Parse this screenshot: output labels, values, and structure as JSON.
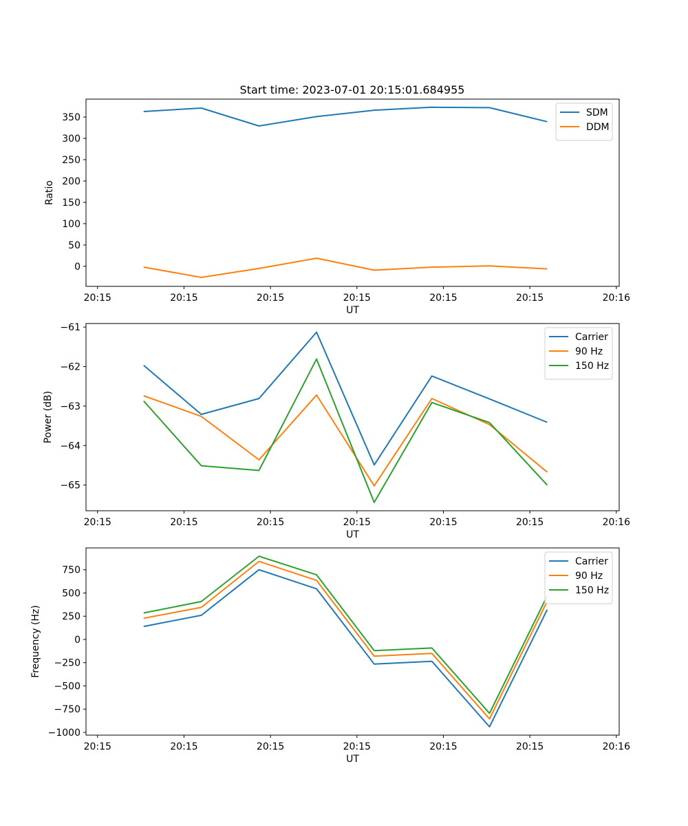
{
  "figure_title": "Start time: 2023-07-01 20:15:01.684955",
  "colors": {
    "blue": "#1f77b4",
    "orange": "#ff7f0e",
    "green": "#2ca02c"
  },
  "chart_data": [
    {
      "type": "line",
      "title": "Start time: 2023-07-01 20:15:01.684955",
      "xlabel": "UT",
      "ylabel": "Ratio",
      "x": [
        1,
        2,
        3,
        4,
        5,
        6,
        7,
        8
      ],
      "xlim": [
        0,
        9.25
      ],
      "xticks": [
        {
          "v": 0.2,
          "label": "20:15"
        },
        {
          "v": 1.7,
          "label": "20:15"
        },
        {
          "v": 3.2,
          "label": "20:15"
        },
        {
          "v": 4.7,
          "label": "20:15"
        },
        {
          "v": 6.2,
          "label": "20:15"
        },
        {
          "v": 7.7,
          "label": "20:15"
        },
        {
          "v": 9.2,
          "label": "20:16"
        }
      ],
      "ylim": [
        -47,
        392
      ],
      "yticks": [
        {
          "v": 350,
          "label": "350"
        },
        {
          "v": 300,
          "label": "300"
        },
        {
          "v": 250,
          "label": "250"
        },
        {
          "v": 200,
          "label": "200"
        },
        {
          "v": 150,
          "label": "150"
        },
        {
          "v": 100,
          "label": "100"
        },
        {
          "v": 50,
          "label": "50"
        },
        {
          "v": 0,
          "label": "0"
        }
      ],
      "legend": "top-right",
      "series": [
        {
          "name": "SDM",
          "color": "#1f77b4",
          "values": [
            363,
            371,
            329,
            351,
            366,
            373,
            372,
            339
          ]
        },
        {
          "name": "DDM",
          "color": "#ff7f0e",
          "values": [
            -2,
            -26,
            -5,
            19,
            -9,
            -2,
            1,
            -6
          ]
        }
      ]
    },
    {
      "type": "line",
      "title": "",
      "xlabel": "UT",
      "ylabel": "Power (dB)",
      "x": [
        1,
        2,
        3,
        4,
        5,
        6,
        7,
        8
      ],
      "xlim": [
        0,
        9.25
      ],
      "xticks": [
        {
          "v": 0.2,
          "label": "20:15"
        },
        {
          "v": 1.7,
          "label": "20:15"
        },
        {
          "v": 3.2,
          "label": "20:15"
        },
        {
          "v": 4.7,
          "label": "20:15"
        },
        {
          "v": 6.2,
          "label": "20:15"
        },
        {
          "v": 7.7,
          "label": "20:15"
        },
        {
          "v": 9.2,
          "label": "20:16"
        }
      ],
      "ylim": [
        -65.65,
        -60.91
      ],
      "yticks": [
        {
          "v": -61,
          "label": "−61"
        },
        {
          "v": -62,
          "label": "−62"
        },
        {
          "v": -63,
          "label": "−63"
        },
        {
          "v": -64,
          "label": "−64"
        },
        {
          "v": -65,
          "label": "−65"
        }
      ],
      "legend": "top-right",
      "series": [
        {
          "name": "Carrier",
          "color": "#1f77b4",
          "values": [
            -61.97,
            -63.21,
            -62.81,
            -61.13,
            -64.49,
            -62.24,
            -62.82,
            -63.41
          ]
        },
        {
          "name": "90 Hz",
          "color": "#ff7f0e",
          "values": [
            -62.74,
            -63.26,
            -64.36,
            -62.72,
            -65.02,
            -62.81,
            -63.47,
            -64.67
          ]
        },
        {
          "name": "150 Hz",
          "color": "#2ca02c",
          "values": [
            -62.87,
            -64.51,
            -64.63,
            -61.81,
            -65.44,
            -62.91,
            -63.42,
            -65.0
          ]
        }
      ]
    },
    {
      "type": "line",
      "title": "",
      "xlabel": "UT",
      "ylabel": "Frequency (Hz)",
      "x": [
        1,
        2,
        3,
        4,
        5,
        6,
        7,
        8
      ],
      "xlim": [
        0,
        9.25
      ],
      "xticks": [
        {
          "v": 0.2,
          "label": "20:15"
        },
        {
          "v": 1.7,
          "label": "20:15"
        },
        {
          "v": 3.2,
          "label": "20:15"
        },
        {
          "v": 4.7,
          "label": "20:15"
        },
        {
          "v": 6.2,
          "label": "20:15"
        },
        {
          "v": 7.7,
          "label": "20:15"
        },
        {
          "v": 9.2,
          "label": "20:16"
        }
      ],
      "ylim": [
        -1030,
        985
      ],
      "yticks": [
        {
          "v": 750,
          "label": "750"
        },
        {
          "v": 500,
          "label": "500"
        },
        {
          "v": 250,
          "label": "250"
        },
        {
          "v": 0,
          "label": "0"
        },
        {
          "v": -250,
          "label": "−250"
        },
        {
          "v": -500,
          "label": "−500"
        },
        {
          "v": -750,
          "label": "−750"
        },
        {
          "v": -1000,
          "label": "−1000"
        }
      ],
      "legend": "top-right",
      "series": [
        {
          "name": "Carrier",
          "color": "#1f77b4",
          "values": [
            140,
            260,
            750,
            545,
            -265,
            -235,
            -940,
            320
          ]
        },
        {
          "name": "90 Hz",
          "color": "#ff7f0e",
          "values": [
            228,
            345,
            840,
            635,
            -180,
            -150,
            -855,
            410
          ]
        },
        {
          "name": "150 Hz",
          "color": "#2ca02c",
          "values": [
            285,
            408,
            895,
            695,
            -120,
            -92,
            -795,
            468
          ]
        }
      ]
    }
  ]
}
